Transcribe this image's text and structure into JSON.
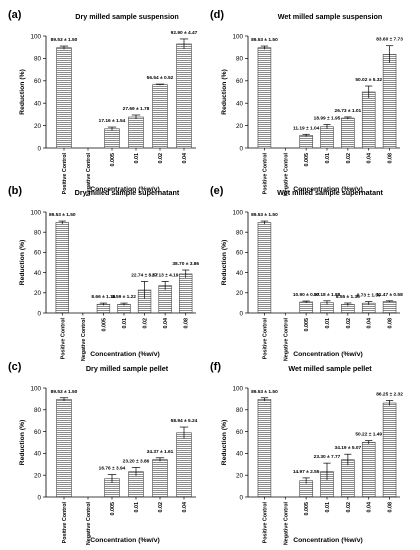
{
  "chart_data": [
    {
      "type": "bar",
      "panel_label": "(a)",
      "title": "Dry milled sample suspension",
      "xlabel": "Concentration (%w/v)",
      "ylabel": "Reduction (%)",
      "ylim": [
        0,
        100
      ],
      "yticks": [
        0,
        20,
        40,
        60,
        80,
        100
      ],
      "categories": [
        "Positive Control",
        "Negative Control",
        "0.005",
        "0.01",
        "0.02",
        "0.04"
      ],
      "values": [
        89.53,
        0,
        17.16,
        27.69,
        56.54,
        92.9
      ],
      "errors": [
        1.5,
        0,
        1.54,
        1.78,
        0.52,
        4.47
      ],
      "labels": [
        "89.53 ± 1.50",
        "",
        "17.16 ± 1.54",
        "27.69 ± 1.78",
        "56.54 ± 0.52",
        "92.90 ± 4.47"
      ]
    },
    {
      "type": "bar",
      "panel_label": "(d)",
      "title": "Wet milled sample suspension",
      "xlabel": "Concentration (%w/v)",
      "ylabel": "Reduction (%)",
      "ylim": [
        0,
        100
      ],
      "yticks": [
        0,
        20,
        40,
        60,
        80,
        100
      ],
      "categories": [
        "Positive Control",
        "Negative Control",
        "0.005",
        "0.01",
        "0.02",
        "0.04",
        "0.08"
      ],
      "values": [
        89.53,
        0,
        11.19,
        18.99,
        26.73,
        50.02,
        83.6
      ],
      "errors": [
        1.5,
        0,
        1.04,
        1.95,
        1.01,
        5.32,
        7.73
      ],
      "labels": [
        "89.53 ± 1.50",
        "",
        "11.19 ± 1.04",
        "18.99 ± 1.95",
        "26.73 ± 1.01",
        "50.02 ± 5.32",
        "83.60 ± 7.73"
      ]
    },
    {
      "type": "bar",
      "panel_label": "(b)",
      "title": "Dry milled sample supernatant",
      "xlabel": "Concentration (%w/v)",
      "ylabel": "Reduction (%)",
      "ylim": [
        0,
        100
      ],
      "yticks": [
        0,
        20,
        40,
        60,
        80,
        100
      ],
      "categories": [
        "Positive Control",
        "Negative Control",
        "0.005",
        "0.01",
        "0.02",
        "0.04",
        "0.08"
      ],
      "values": [
        89.53,
        0,
        8.66,
        8.59,
        22.74,
        27.13,
        38.7
      ],
      "errors": [
        1.5,
        0,
        1.16,
        1.22,
        8.57,
        4.19,
        3.86
      ],
      "labels": [
        "89.53 ± 1.50",
        "",
        "8.66 ± 1.16",
        "8.59 ± 1.22",
        "22.74 ± 8.57",
        "27.13 ± 4.19",
        "38.70 ± 3.86"
      ]
    },
    {
      "type": "bar",
      "panel_label": "(e)",
      "title": "Wet milled sample supernatant",
      "xlabel": "Concentration (%w/v)",
      "ylabel": "Reduction (%)",
      "ylim": [
        0,
        100
      ],
      "yticks": [
        0,
        20,
        40,
        60,
        80,
        100
      ],
      "categories": [
        "Positive Control",
        "Negative Control",
        "0.005",
        "0.01",
        "0.02",
        "0.04",
        "0.08"
      ],
      "values": [
        89.53,
        0,
        10.9,
        10.18,
        8.55,
        9.73,
        11.47
      ],
      "errors": [
        1.5,
        0,
        0.97,
        1.88,
        1.36,
        1.59,
        0.58
      ],
      "labels": [
        "89.53 ± 1.50",
        "",
        "10.90 ± 0.97",
        "10.18 ± 1.88",
        "8.55 ± 1.36",
        "9.73 ± 1.59",
        "11.47 ± 0.58"
      ]
    },
    {
      "type": "bar",
      "panel_label": "(c)",
      "title": "Dry milled sample pellet",
      "xlabel": "Concentration (%w/v)",
      "ylabel": "Reduction (%)",
      "ylim": [
        0,
        100
      ],
      "yticks": [
        0,
        20,
        40,
        60,
        80,
        100
      ],
      "categories": [
        "Positive Control",
        "Negative Control",
        "0.005",
        "0.01",
        "0.02",
        "0.04"
      ],
      "values": [
        89.53,
        0,
        16.76,
        23.2,
        34.37,
        58.94
      ],
      "errors": [
        1.5,
        0,
        3.94,
        3.86,
        1.61,
        5.24
      ],
      "labels": [
        "89.53 ± 1.50",
        "",
        "16.76 ± 3.94",
        "23.20 ± 3.86",
        "34.37 ± 1.61",
        "58.94 ± 5.24"
      ]
    },
    {
      "type": "bar",
      "panel_label": "(f)",
      "title": "Wet milled sample pellet",
      "xlabel": "Concentration (%w/v)",
      "ylabel": "Reduction (%)",
      "ylim": [
        0,
        100
      ],
      "yticks": [
        0,
        20,
        40,
        60,
        80,
        100
      ],
      "categories": [
        "Positive Control",
        "Negative Control",
        "0.005",
        "0.01",
        "0.02",
        "0.04",
        "0.08"
      ],
      "values": [
        89.53,
        0,
        14.97,
        23.3,
        34.19,
        50.22,
        86.25
      ],
      "errors": [
        1.5,
        0,
        2.55,
        7.77,
        5.07,
        1.49,
        2.32
      ],
      "labels": [
        "89.53 ± 1.50",
        "",
        "14.97 ± 2.55",
        "23.30 ± 7.77",
        "34.19 ± 5.07",
        "50.22 ± 1.49",
        "86.25 ± 2.32"
      ]
    }
  ]
}
